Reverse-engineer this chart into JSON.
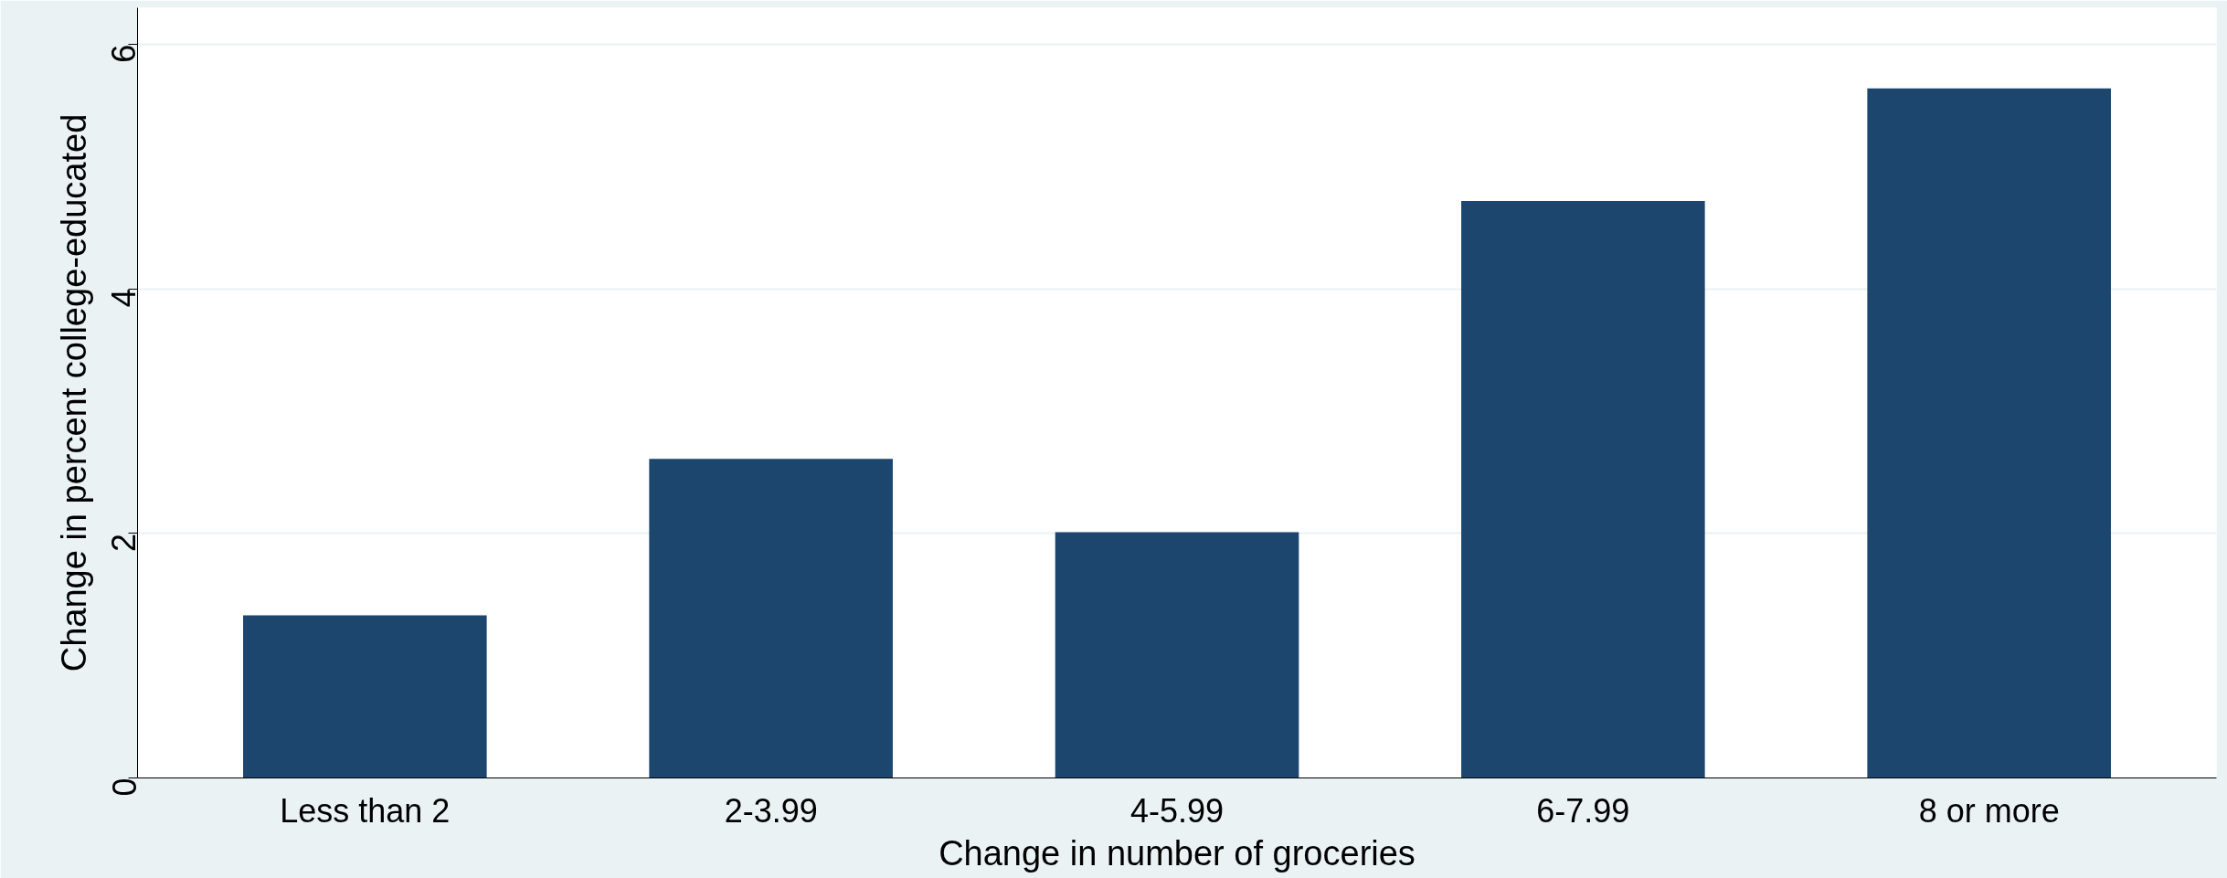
{
  "chart_data": {
    "type": "bar",
    "xlabel": "Change in number of groceries",
    "ylabel": "Change in percent college-educated",
    "categories": [
      "Less than 2",
      "2-3.99",
      "4-5.99",
      "6-7.99",
      "8 or more"
    ],
    "values": [
      1.33,
      2.61,
      2.01,
      4.72,
      5.64
    ],
    "color": "#1c466e",
    "ylim": [
      0,
      6.3
    ],
    "yticks": [
      0,
      2,
      4,
      6
    ],
    "grid": "y"
  }
}
